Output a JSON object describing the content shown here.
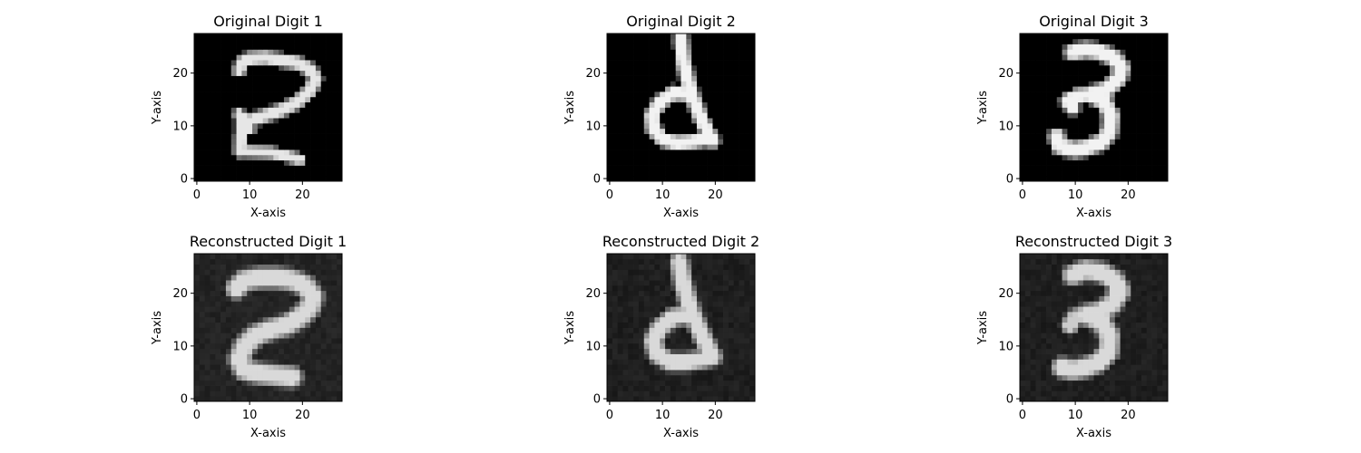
{
  "chart_data": [
    {
      "type": "heatmap",
      "title": "Original Digit 1",
      "xlabel": "X-axis",
      "ylabel": "Y-axis",
      "xlim": [
        -0.5,
        27.5
      ],
      "ylim": [
        -0.5,
        27.5
      ],
      "xticks": [
        0,
        10,
        20
      ],
      "yticks": [
        0,
        10,
        20
      ],
      "colormap": "gray",
      "background_value": 0.0,
      "strokes": [
        {
          "points": [
            [
              8.5,
              22
            ],
            [
              10,
              22.8
            ],
            [
              13,
              23
            ],
            [
              16,
              22.5
            ],
            [
              19,
              22
            ],
            [
              21.5,
              20.7
            ],
            [
              22.5,
              19
            ],
            [
              21.5,
              16.8
            ],
            [
              19,
              14.5
            ],
            [
              16,
              13
            ],
            [
              13,
              12
            ],
            [
              10,
              11
            ],
            [
              8.5,
              10.5
            ]
          ],
          "intensity": 0.9,
          "width": 1.4
        },
        {
          "points": [
            [
              8.5,
              22
            ],
            [
              8,
              20.5
            ]
          ],
          "intensity": 0.9,
          "width": 1.3
        },
        {
          "points": [
            [
              8,
              12.3
            ],
            [
              10,
              9.5
            ]
          ],
          "intensity": 0.9,
          "width": 1.2
        },
        {
          "points": [
            [
              8.8,
              10.5
            ],
            [
              8.3,
              8
            ],
            [
              8.2,
              5.2
            ]
          ],
          "intensity": 0.9,
          "width": 1.3
        },
        {
          "points": [
            [
              8.4,
              5.2
            ],
            [
              11,
              5.1
            ],
            [
              14,
              5
            ],
            [
              17,
              4.3
            ],
            [
              19.5,
              3.7
            ]
          ],
          "intensity": 0.9,
          "width": 1.2
        }
      ]
    },
    {
      "type": "heatmap",
      "title": "Original Digit 2",
      "xlabel": "X-axis",
      "ylabel": "Y-axis",
      "xlim": [
        -0.5,
        27.5
      ],
      "ylim": [
        -0.5,
        27.5
      ],
      "xticks": [
        0,
        10,
        20
      ],
      "yticks": [
        0,
        10,
        20
      ],
      "colormap": "gray",
      "background_value": 0.0,
      "strokes": [
        {
          "points": [
            [
              13.5,
              26.5
            ],
            [
              14,
              22
            ],
            [
              15.5,
              16
            ],
            [
              17.5,
              11
            ],
            [
              19.5,
              7.2
            ]
          ],
          "intensity": 0.95,
          "width": 1.5
        },
        {
          "points": [
            [
              15.5,
              16
            ],
            [
              12,
              16.3
            ],
            [
              9.5,
              14.5
            ],
            [
              8,
              12
            ],
            [
              8.3,
              9.5
            ],
            [
              10,
              7.5
            ],
            [
              12.5,
              6.8
            ],
            [
              15.5,
              7
            ],
            [
              18,
              7.5
            ]
          ],
          "intensity": 0.95,
          "width": 1.5
        }
      ]
    },
    {
      "type": "heatmap",
      "title": "Original Digit 3",
      "xlabel": "X-axis",
      "ylabel": "Y-axis",
      "xlim": [
        -0.5,
        27.5
      ],
      "ylim": [
        -0.5,
        27.5
      ],
      "xticks": [
        0,
        10,
        20
      ],
      "yticks": [
        0,
        10,
        20
      ],
      "colormap": "gray",
      "background_value": 0.0,
      "strokes": [
        {
          "points": [
            [
              9.5,
              24
            ],
            [
              12,
              24.5
            ],
            [
              15,
              24
            ],
            [
              17.5,
              22.8
            ],
            [
              18.8,
              21
            ],
            [
              18.2,
              19
            ],
            [
              16,
              17
            ],
            [
              13,
              16
            ]
          ],
          "intensity": 0.95,
          "width": 1.7
        },
        {
          "points": [
            [
              13,
              16
            ],
            [
              10.5,
              15.8
            ],
            [
              8.5,
              14.8
            ],
            [
              9.5,
              13.5
            ]
          ],
          "intensity": 0.95,
          "width": 1.5
        },
        {
          "points": [
            [
              13,
              16
            ],
            [
              15.5,
              14.5
            ],
            [
              16.8,
              12
            ],
            [
              16.5,
              9
            ],
            [
              15,
              7
            ],
            [
              12.5,
              6
            ],
            [
              10,
              5.5
            ],
            [
              7,
              6.2
            ],
            [
              6.5,
              8
            ]
          ],
          "intensity": 0.95,
          "width": 1.7
        }
      ]
    },
    {
      "type": "heatmap",
      "title": "Reconstructed Digit 1",
      "xlabel": "X-axis",
      "ylabel": "Y-axis",
      "xlim": [
        -0.5,
        27.5
      ],
      "ylim": [
        -0.5,
        27.5
      ],
      "xticks": [
        0,
        10,
        20
      ],
      "yticks": [
        0,
        10,
        20
      ],
      "colormap": "gray",
      "background_value": 0.14,
      "strokes": [
        {
          "points": [
            [
              7.5,
              21
            ],
            [
              9,
              22.5
            ],
            [
              12,
              23
            ],
            [
              15,
              23
            ],
            [
              18,
              22.6
            ],
            [
              20.5,
              21.5
            ],
            [
              22,
              19.5
            ],
            [
              21.5,
              17.5
            ],
            [
              19.5,
              15.5
            ],
            [
              17,
              14
            ],
            [
              14,
              13.2
            ],
            [
              11,
              12
            ],
            [
              9,
              10
            ],
            [
              8,
              7.5
            ],
            [
              9,
              5.5
            ],
            [
              12,
              4.8
            ],
            [
              15,
              4.5
            ],
            [
              18,
              4.2
            ]
          ],
          "intensity": 0.85,
          "width": 2.2
        }
      ]
    },
    {
      "type": "heatmap",
      "title": "Reconstructed Digit 2",
      "xlabel": "X-axis",
      "ylabel": "Y-axis",
      "xlim": [
        -0.5,
        27.5
      ],
      "ylim": [
        -0.5,
        27.5
      ],
      "xticks": [
        0,
        10,
        20
      ],
      "yticks": [
        0,
        10,
        20
      ],
      "colormap": "gray",
      "background_value": 0.12,
      "strokes": [
        {
          "points": [
            [
              13.2,
              26
            ],
            [
              14,
              21.5
            ],
            [
              15.5,
              16.5
            ],
            [
              17.5,
              12
            ],
            [
              19.5,
              8
            ]
          ],
          "intensity": 0.85,
          "width": 1.9
        },
        {
          "points": [
            [
              15.5,
              16
            ],
            [
              12,
              15.5
            ],
            [
              9.5,
              13.5
            ],
            [
              8.2,
              11
            ],
            [
              9,
              8.5
            ],
            [
              11.5,
              7
            ],
            [
              14.5,
              7
            ],
            [
              17.5,
              7.5
            ],
            [
              19.5,
              8
            ]
          ],
          "intensity": 0.85,
          "width": 1.9
        }
      ]
    },
    {
      "type": "heatmap",
      "title": "Reconstructed Digit 3",
      "xlabel": "X-axis",
      "ylabel": "Y-axis",
      "xlim": [
        -0.5,
        27.5
      ],
      "ylim": [
        -0.5,
        27.5
      ],
      "xticks": [
        0,
        10,
        20
      ],
      "yticks": [
        0,
        10,
        20
      ],
      "colormap": "gray",
      "background_value": 0.12,
      "strokes": [
        {
          "points": [
            [
              9.5,
              23.5
            ],
            [
              12,
              24.5
            ],
            [
              15,
              24
            ],
            [
              17.5,
              22.5
            ],
            [
              18.5,
              20.5
            ],
            [
              17,
              18
            ],
            [
              14.5,
              16.5
            ],
            [
              12,
              16
            ]
          ],
          "intensity": 0.85,
          "width": 2.1
        },
        {
          "points": [
            [
              12,
              16
            ],
            [
              10,
              15.5
            ],
            [
              9,
              14
            ]
          ],
          "intensity": 0.8,
          "width": 1.8
        },
        {
          "points": [
            [
              12,
              16
            ],
            [
              15,
              14.5
            ],
            [
              16.5,
              12
            ],
            [
              16.3,
              9
            ],
            [
              14.5,
              7
            ],
            [
              12,
              6
            ],
            [
              9.5,
              5.5
            ],
            [
              7.5,
              6
            ]
          ],
          "intensity": 0.85,
          "width": 2.1
        }
      ]
    }
  ]
}
